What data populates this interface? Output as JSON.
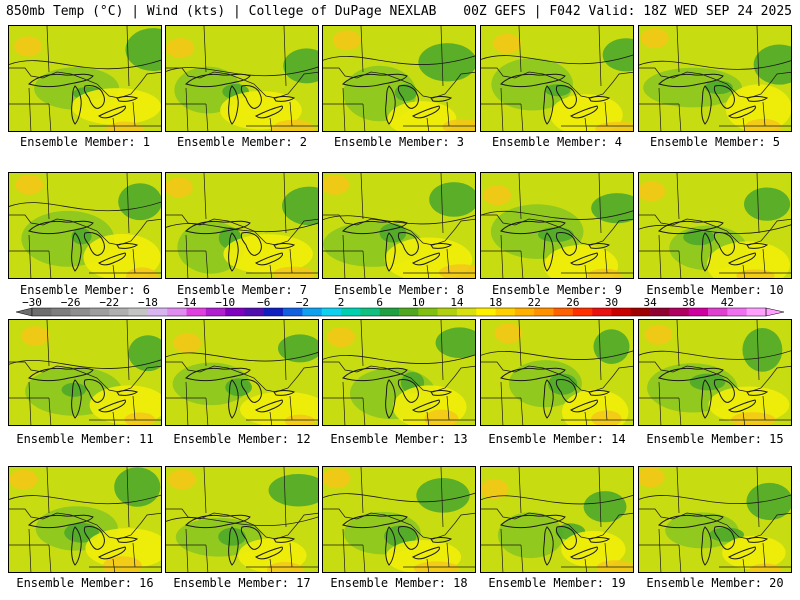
{
  "header": {
    "left": "850mb Temp (°C) | Wind (kts) | College of DuPage NEXLAB",
    "right": "00Z GEFS | F042 Valid: 18Z WED SEP 24 2025"
  },
  "panels": [
    {
      "label": "Ensemble Member: 1"
    },
    {
      "label": "Ensemble Member: 2"
    },
    {
      "label": "Ensemble Member: 3"
    },
    {
      "label": "Ensemble Member: 4"
    },
    {
      "label": "Ensemble Member: 5"
    },
    {
      "label": "Ensemble Member: 6"
    },
    {
      "label": "Ensemble Member: 7"
    },
    {
      "label": "Ensemble Member: 8"
    },
    {
      "label": "Ensemble Member: 9"
    },
    {
      "label": "Ensemble Member: 10"
    },
    {
      "label": "Ensemble Member: 11"
    },
    {
      "label": "Ensemble Member: 12"
    },
    {
      "label": "Ensemble Member: 13"
    },
    {
      "label": "Ensemble Member: 14"
    },
    {
      "label": "Ensemble Member: 15"
    },
    {
      "label": "Ensemble Member: 16"
    },
    {
      "label": "Ensemble Member: 17"
    },
    {
      "label": "Ensemble Member: 18"
    },
    {
      "label": "Ensemble Member: 19"
    },
    {
      "label": "Ensemble Member: 20"
    }
  ],
  "colorbar": {
    "ticks": [
      "−30",
      "−26",
      "−22",
      "−18",
      "−14",
      "−10",
      "−6",
      "−2",
      "2",
      "6",
      "10",
      "14",
      "18",
      "22",
      "26",
      "30",
      "34",
      "38",
      "42"
    ],
    "colors": [
      "#6e6e6e",
      "#7e7e7e",
      "#8e8e8e",
      "#9e9e9e",
      "#b0b0b0",
      "#c4c4c4",
      "#d8b4f0",
      "#e08cf0",
      "#e040e0",
      "#b020d0",
      "#8000c0",
      "#5010b0",
      "#1020c0",
      "#1060e0",
      "#10a0f0",
      "#10d0f0",
      "#00d0b0",
      "#10c080",
      "#20a040",
      "#50a820",
      "#80c010",
      "#b0d010",
      "#d8e010",
      "#fff000",
      "#ffd000",
      "#ffb000",
      "#ff9000",
      "#ff6000",
      "#ff3000",
      "#e81010",
      "#c80000",
      "#a00000",
      "#900030",
      "#b00060",
      "#d000a0",
      "#e040d0",
      "#f070f0",
      "#ffa0ff"
    ]
  },
  "map": {
    "base_color": "#c8dc12",
    "cool_color": "#8cc620",
    "cold_color": "#4fa82a",
    "warm_color": "#f2ee0a",
    "hot_color": "#f2c818",
    "line_color": "#1a1a1a"
  }
}
